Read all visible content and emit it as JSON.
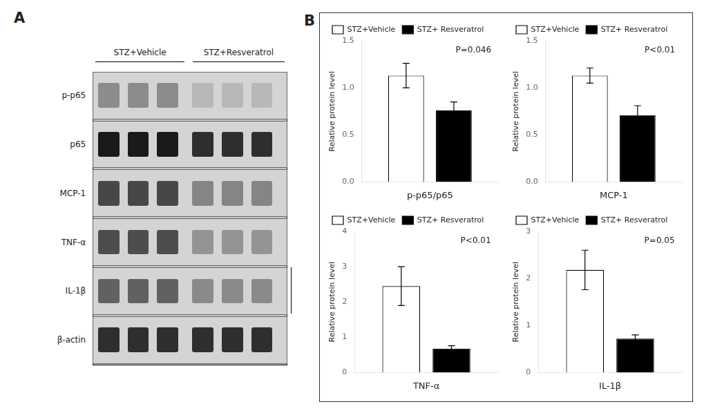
{
  "chart_data": [
    {
      "type": "blot",
      "title": "A",
      "categories": [
        "p-p65",
        "p65",
        "MCP-1",
        "TNF-α",
        "IL-1β",
        "β-actin"
      ],
      "annotations": [
        "STZ+Vehicle",
        "STZ+Resveratrol"
      ]
    },
    {
      "type": "bar",
      "title": "B",
      "xlabel": "p-p65/p65",
      "ylabel": "Relative protein level",
      "categories": [
        null
      ],
      "series": [
        {
          "name": "STZ+Vehicle",
          "color": "white",
          "values": [
            1.13
          ],
          "errors": [
            0.13
          ]
        },
        {
          "name": "STZ+ Resveratrol",
          "color": "black",
          "values": [
            0.76
          ],
          "errors": [
            0.09
          ]
        }
      ],
      "ylim": [
        0,
        1.5
      ],
      "yticks": [
        {
          "value": 0,
          "label": "0.0"
        },
        0.5,
        {
          "value": 1,
          "label": "1.0"
        },
        1.5
      ],
      "annotations": [
        "P=0.046"
      ],
      "legend": "upper left",
      "grid": false,
      "tick_labels": "y"
    },
    {
      "type": "bar",
      "xlabel": "MCP-1",
      "ylabel": "Relative protein level",
      "categories": [
        null
      ],
      "series": [
        {
          "name": "STZ+Vehicle",
          "color": "white",
          "values": [
            1.13
          ],
          "errors": [
            0.08
          ]
        },
        {
          "name": "STZ+ Resveratrol",
          "color": "black",
          "values": [
            0.71
          ],
          "errors": [
            0.1
          ]
        }
      ],
      "ylim": [
        0,
        1.5
      ],
      "yticks": [
        {
          "value": 0,
          "label": "0.0"
        },
        0.5,
        {
          "value": 1,
          "label": "1.0"
        },
        1.5
      ],
      "annotations": [
        "P<0.01"
      ],
      "legend": "upper left",
      "grid": false,
      "tick_labels": "y"
    },
    {
      "type": "bar",
      "xlabel": "TNF-α",
      "ylabel": "Relative protein level",
      "categories": [
        null
      ],
      "series": [
        {
          "name": "STZ+Vehicle",
          "color": "white",
          "values": [
            2.45
          ],
          "errors": [
            0.55
          ]
        },
        {
          "name": "STZ+ Resveratrol",
          "color": "black",
          "values": [
            0.68
          ],
          "errors": [
            0.08
          ]
        }
      ],
      "ylim": [
        0,
        4
      ],
      "yticks": [
        0,
        1,
        2,
        3,
        4
      ],
      "annotations": [
        "P<0.01"
      ],
      "legend": "upper left",
      "grid": false,
      "tick_labels": "y"
    },
    {
      "type": "bar",
      "xlabel": "IL-1β",
      "ylabel": "Relative protein level",
      "categories": [
        null
      ],
      "series": [
        {
          "name": "STZ+Vehicle",
          "color": "white",
          "values": [
            2.18
          ],
          "errors": [
            0.42
          ]
        },
        {
          "name": "STZ+ Resveratrol",
          "color": "black",
          "values": [
            0.72
          ],
          "errors": [
            0.08
          ]
        }
      ],
      "ylim": [
        0,
        3
      ],
      "yticks": [
        0,
        1,
        2,
        3
      ],
      "annotations": [
        "P=0.05"
      ],
      "legend": "upper left",
      "grid": false,
      "tick_labels": "y"
    }
  ]
}
